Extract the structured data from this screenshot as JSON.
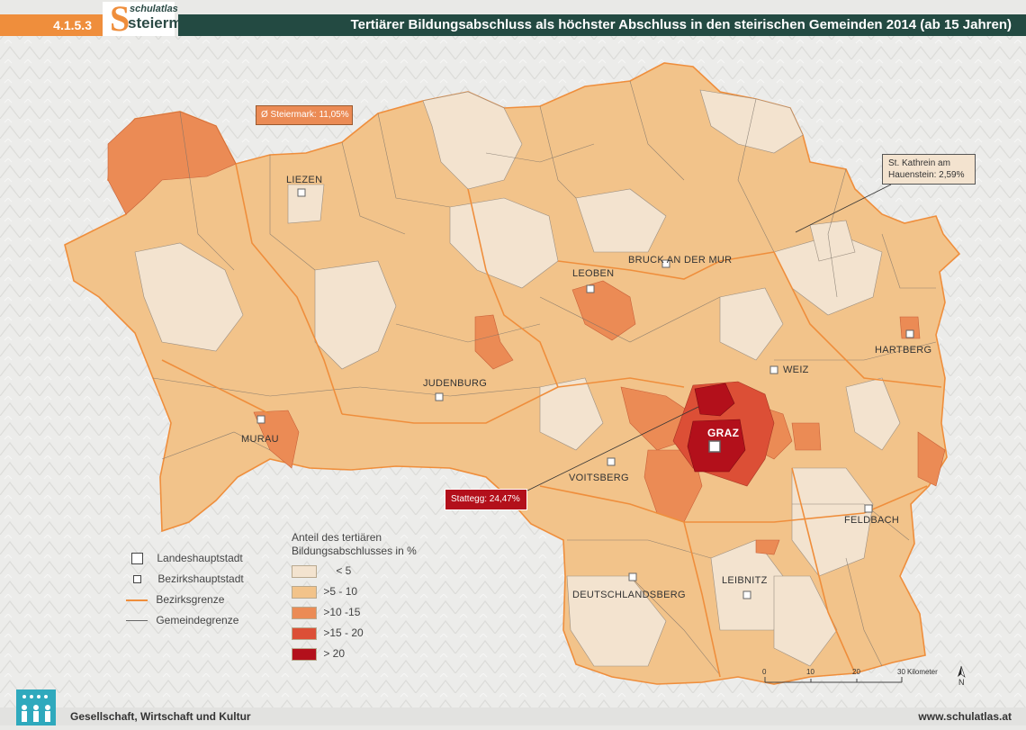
{
  "header": {
    "code": "4.1.5.3",
    "logo_top": "schulatlas",
    "logo_bottom": "steiermark",
    "logo_letter": "S",
    "title": "Tertiärer Bildungsabschluss als höchster Abschluss in den steirischen Gemeinden 2014  (ab 15 Jahren)"
  },
  "cities": {
    "liezen": "LIEZEN",
    "leoben": "LEOBEN",
    "bruck": "BRUCK AN DER MUR",
    "judenburg": "JUDENBURG",
    "murau": "MURAU",
    "weiz": "WEIZ",
    "hartberg": "HARTBERG",
    "graz": "GRAZ",
    "voitsberg": "VOITSBERG",
    "feldbach": "FELDBACH",
    "deutschlandsberg": "DEUTSCHLANDSBERG",
    "leibnitz": "LEIBNITZ"
  },
  "callouts": {
    "average": "Ø Steiermark: 11,05%",
    "min_line1": "St. Kathrein am",
    "min_line2": "Hauenstein: 2,59%",
    "max": "Stattegg: 24,47%"
  },
  "legend": {
    "symbols": [
      {
        "label": "Landeshauptstadt",
        "icon": "square-large-icon"
      },
      {
        "label": "Bezirkshauptstadt",
        "icon": "square-small-icon"
      },
      {
        "label": "Bezirksgrenze",
        "icon": "orange-line-icon"
      },
      {
        "label": "Gemeindegrenze",
        "icon": "gray-line-icon"
      }
    ],
    "title_line1": "Anteil des tertiären",
    "title_line2": "Bildungsabschlusses in %",
    "classes": [
      {
        "label": "< 5",
        "color": "#f3e3cf"
      },
      {
        "label": ">5 - 10",
        "color": "#f2c38a"
      },
      {
        "label": ">10 -15",
        "color": "#eb8b55"
      },
      {
        "label": ">15 - 20",
        "color": "#dc4f36"
      },
      {
        "label": "> 20",
        "color": "#b3101b"
      }
    ]
  },
  "scale": {
    "ticks": [
      "0",
      "10",
      "20",
      "30"
    ],
    "unit": "Kilometer",
    "north": "N"
  },
  "footer": {
    "left": "Gesellschaft, Wirtschaft und Kultur",
    "right": "www.schulatlas.at"
  },
  "colors": {
    "header_orange": "#ef8e3c",
    "header_green": "#234a42",
    "district_border": "#ef8e3c",
    "municipality_border": "#7a7168"
  }
}
